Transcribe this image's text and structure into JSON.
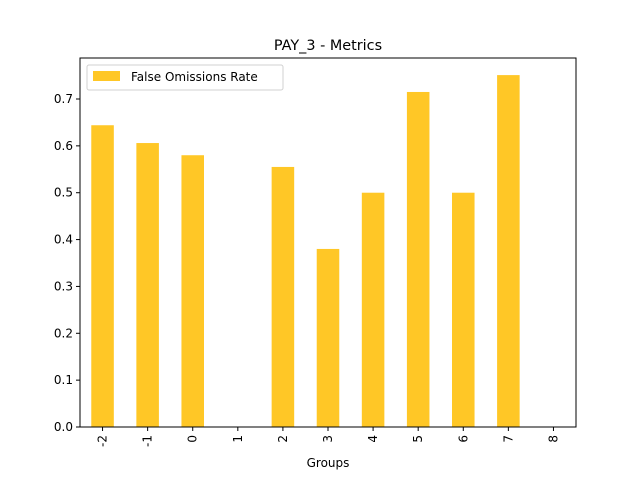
{
  "chart_data": {
    "type": "bar",
    "title": "PAY_3 - Metrics",
    "xlabel": "Groups",
    "ylabel": "",
    "categories": [
      "-2",
      "-1",
      "0",
      "1",
      "2",
      "3",
      "4",
      "5",
      "6",
      "7",
      "8"
    ],
    "series": [
      {
        "name": "False Omissions Rate",
        "values": [
          0.644,
          0.606,
          0.58,
          0.0,
          0.555,
          0.38,
          0.5,
          0.715,
          0.5,
          0.751,
          0.0
        ],
        "color": "#ffc726"
      }
    ],
    "ylim": [
      0,
      0.7875
    ],
    "yticks": [
      "0.0",
      "0.1",
      "0.2",
      "0.3",
      "0.4",
      "0.5",
      "0.6",
      "0.7"
    ],
    "grid": false,
    "legend": "upper-left",
    "xtick_rotation": 90
  }
}
